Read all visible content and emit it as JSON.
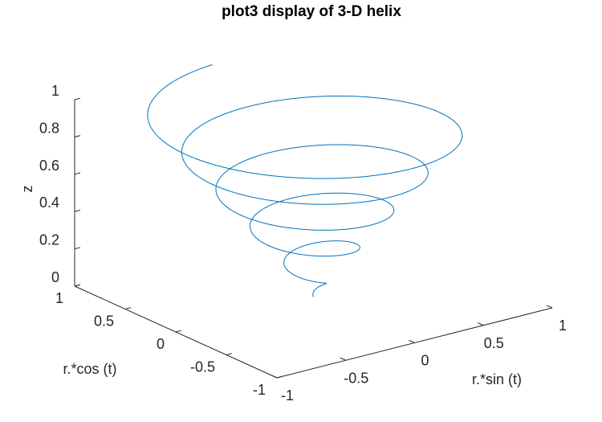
{
  "chart_data": {
    "type": "line",
    "plot_kind": "3d-line",
    "title": "plot3 display of 3-D helix",
    "xlabel": "r.*sin (t)",
    "ylabel": "r.*cos (t)",
    "zlabel": "z",
    "xlim": [
      -1,
      1
    ],
    "ylim": [
      -1,
      1
    ],
    "zlim": [
      0,
      1
    ],
    "xticks": [
      -1,
      -0.5,
      0,
      0.5,
      1
    ],
    "xtick_labels": [
      "-1",
      "-0.5",
      "0",
      "0.5",
      "1"
    ],
    "yticks": [
      -1,
      -0.5,
      0,
      0.5,
      1
    ],
    "ytick_labels": [
      "-1",
      "-0.5",
      "0",
      "0.5",
      "1"
    ],
    "zticks": [
      0,
      0.2,
      0.4,
      0.6,
      0.8,
      1
    ],
    "ztick_labels": [
      "0",
      "0.2",
      "0.4",
      "0.6",
      "0.8",
      "1"
    ],
    "grid": false,
    "series": [
      {
        "color": "#0072BD",
        "definition": "t = 0..10π, r = z = t/(10π), x = r·sin(t), y = r·cos(t)",
        "t_range": [
          0,
          31.4159
        ],
        "samples": 1500
      }
    ]
  }
}
